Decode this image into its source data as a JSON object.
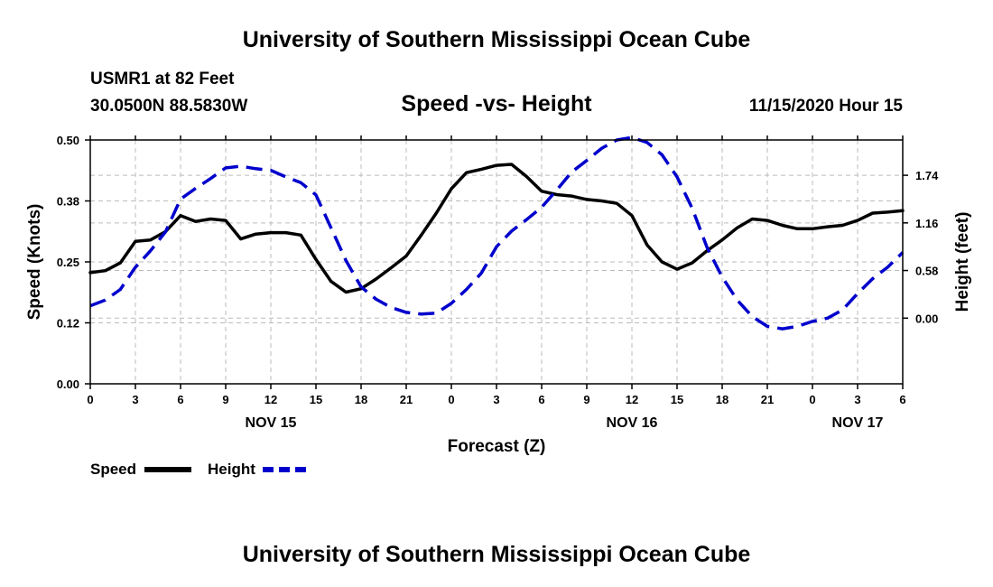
{
  "header": {
    "title": "University of Southern Mississippi Ocean Cube",
    "station": "USMR1 at 82 Feet",
    "coords": "30.0500N 88.5830W",
    "subtitle": "Speed -vs- Height",
    "datetime": "11/15/2020 Hour 15"
  },
  "footer": {
    "title": "University of Southern Mississippi Ocean Cube"
  },
  "legend": [
    {
      "label": "Speed",
      "color": "#000000",
      "dash": false
    },
    {
      "label": "Height",
      "color": "#0000cc",
      "dash": true
    }
  ],
  "chart_data": {
    "type": "line",
    "title": "Speed -vs- Height",
    "xlabel": "Forecast (Z)",
    "ylabel": "Speed (Knots)",
    "y2label": "Height (feet)",
    "x_range": [
      0,
      54
    ],
    "x_ticks": [
      0,
      3,
      6,
      9,
      12,
      15,
      18,
      21,
      24,
      27,
      30,
      33,
      36,
      39,
      42,
      45,
      48,
      51,
      54
    ],
    "x_tick_labels": [
      "0",
      "3",
      "6",
      "9",
      "12",
      "15",
      "18",
      "21",
      "0",
      "3",
      "6",
      "9",
      "12",
      "15",
      "18",
      "21",
      "0",
      "3",
      "6"
    ],
    "date_labels": [
      {
        "x": 12,
        "text": "NOV 15"
      },
      {
        "x": 36,
        "text": "NOV 16"
      },
      {
        "x": 51,
        "text": "NOV 17"
      }
    ],
    "ylim": [
      0,
      0.5
    ],
    "y_ticks": [
      0,
      0.125,
      0.25,
      0.375,
      0.5
    ],
    "y_tick_labels": [
      "0.00",
      "0.12",
      "0.25",
      "0.38",
      "0.50"
    ],
    "y2lim": [
      -0.8,
      2.17
    ],
    "y2_ticks": [
      0,
      0.58,
      1.16,
      1.74
    ],
    "y2_tick_labels": [
      "0.00",
      "0.58",
      "1.16",
      "1.74"
    ],
    "grid": true,
    "legend_position": "bottom-left",
    "series": [
      {
        "name": "Speed",
        "axis": "left",
        "color": "#000000",
        "dash": false,
        "x": [
          0,
          1,
          2,
          3,
          4,
          5,
          6,
          7,
          8,
          9,
          10,
          11,
          12,
          13,
          14,
          15,
          16,
          17,
          18,
          19,
          20,
          21,
          22,
          23,
          24,
          25,
          26,
          27,
          28,
          29,
          30,
          31,
          32,
          33,
          34,
          35,
          36,
          37,
          38,
          39,
          40,
          41,
          42,
          43,
          44,
          45,
          46,
          47,
          48,
          49,
          50,
          51,
          52,
          53,
          54
        ],
        "values": [
          0.228,
          0.232,
          0.248,
          0.292,
          0.295,
          0.312,
          0.345,
          0.333,
          0.338,
          0.335,
          0.297,
          0.307,
          0.31,
          0.31,
          0.305,
          0.255,
          0.21,
          0.188,
          0.195,
          0.215,
          0.238,
          0.262,
          0.305,
          0.35,
          0.4,
          0.433,
          0.44,
          0.448,
          0.45,
          0.425,
          0.395,
          0.388,
          0.385,
          0.378,
          0.375,
          0.37,
          0.345,
          0.285,
          0.25,
          0.235,
          0.248,
          0.273,
          0.295,
          0.32,
          0.338,
          0.335,
          0.325,
          0.318,
          0.318,
          0.322,
          0.325,
          0.335,
          0.35,
          0.352,
          0.355
        ]
      },
      {
        "name": "Height",
        "axis": "right",
        "color": "#0000cc",
        "dash": true,
        "x": [
          0,
          1,
          2,
          3,
          4,
          5,
          6,
          7,
          8,
          9,
          10,
          11,
          12,
          13,
          14,
          15,
          16,
          17,
          18,
          19,
          20,
          21,
          22,
          23,
          24,
          25,
          26,
          27,
          28,
          29,
          30,
          31,
          32,
          33,
          34,
          35,
          36,
          37,
          38,
          39,
          40,
          41,
          42,
          43,
          44,
          45,
          46,
          47,
          48,
          49,
          50,
          51,
          52,
          53,
          54
        ],
        "values": [
          0.15,
          0.22,
          0.35,
          0.62,
          0.82,
          1.05,
          1.45,
          1.58,
          1.7,
          1.83,
          1.85,
          1.82,
          1.8,
          1.72,
          1.65,
          1.5,
          1.1,
          0.7,
          0.38,
          0.23,
          0.13,
          0.07,
          0.05,
          0.06,
          0.18,
          0.35,
          0.55,
          0.87,
          1.06,
          1.2,
          1.35,
          1.56,
          1.78,
          1.92,
          2.07,
          2.17,
          2.2,
          2.14,
          1.99,
          1.72,
          1.34,
          0.86,
          0.5,
          0.22,
          0.02,
          -0.1,
          -0.13,
          -0.1,
          -0.04,
          0.0,
          0.1,
          0.3,
          0.48,
          0.62,
          0.8
        ]
      }
    ]
  }
}
